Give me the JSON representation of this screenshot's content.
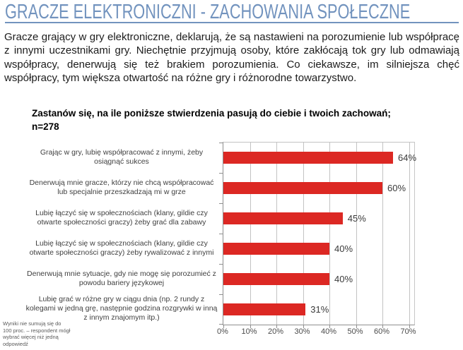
{
  "page": {
    "title": "GRACZE ELEKTRONICZNI - ZACHOWANIA SPOŁECZNE",
    "intro": "Gracze grający w gry elektroniczne, deklarują, że są nastawieni na porozumienie lub współpracę z innymi uczestnikami gry. Niechętnie przyjmują osoby, które zakłócają tok gry lub odmawiają współpracy, denerwują się też brakiem porozumienia. Co ciekawsze, im silniejsza chęć współpracy, tym większa otwartość na różne gry i różnorodne towarzystwo.",
    "footnote": "Wyniki nie sumują się do 100 proc. – respondent mógł wybrać więcej niż jedną odpowiedź"
  },
  "chart_data": {
    "type": "bar",
    "orientation": "horizontal",
    "title": "Zastanów się, na ile poniższe stwierdzenia pasują do ciebie i twoich zachowań; n=278",
    "sample_size": "n=278",
    "categories": [
      "Grając w gry, lubię współpracować z innymi, żeby osiągnąć sukces",
      "Denerwują mnie gracze, którzy nie chcą współpracować lub specjalnie przeszkadzają mi w grze",
      "Lubię łączyć się w społecznościach (klany, gildie czy otwarte społeczności graczy) żeby grać dla zabawy",
      "Lubię łączyć się w społecznościach (klany, gildie czy otwarte społeczności graczy) żeby rywalizować z innymi",
      "Denerwują mnie sytuacje, gdy nie mogę się porozumieć z powodu bariery językowej",
      "Lubię grać w różne gry w ciągu dnia (np. 2 rundy z kolegami w jedną grę, następnie godzina rozgrywki w inną z innym znajomym itp.)"
    ],
    "values": [
      64,
      60,
      45,
      40,
      40,
      31
    ],
    "value_labels": [
      "64%",
      "60%",
      "45%",
      "40%",
      "40%",
      "31%"
    ],
    "xlabel": "",
    "ylabel": "",
    "xlim": [
      0,
      72
    ],
    "x_ticks": [
      "0%",
      "10%",
      "20%",
      "30%",
      "40%",
      "50%",
      "60%",
      "70%"
    ],
    "grid": true,
    "legend": false
  },
  "colors": {
    "accent_blue": "#7293be",
    "bar_red": "#dc2823",
    "gridline_gray": "#c3c3c3"
  }
}
